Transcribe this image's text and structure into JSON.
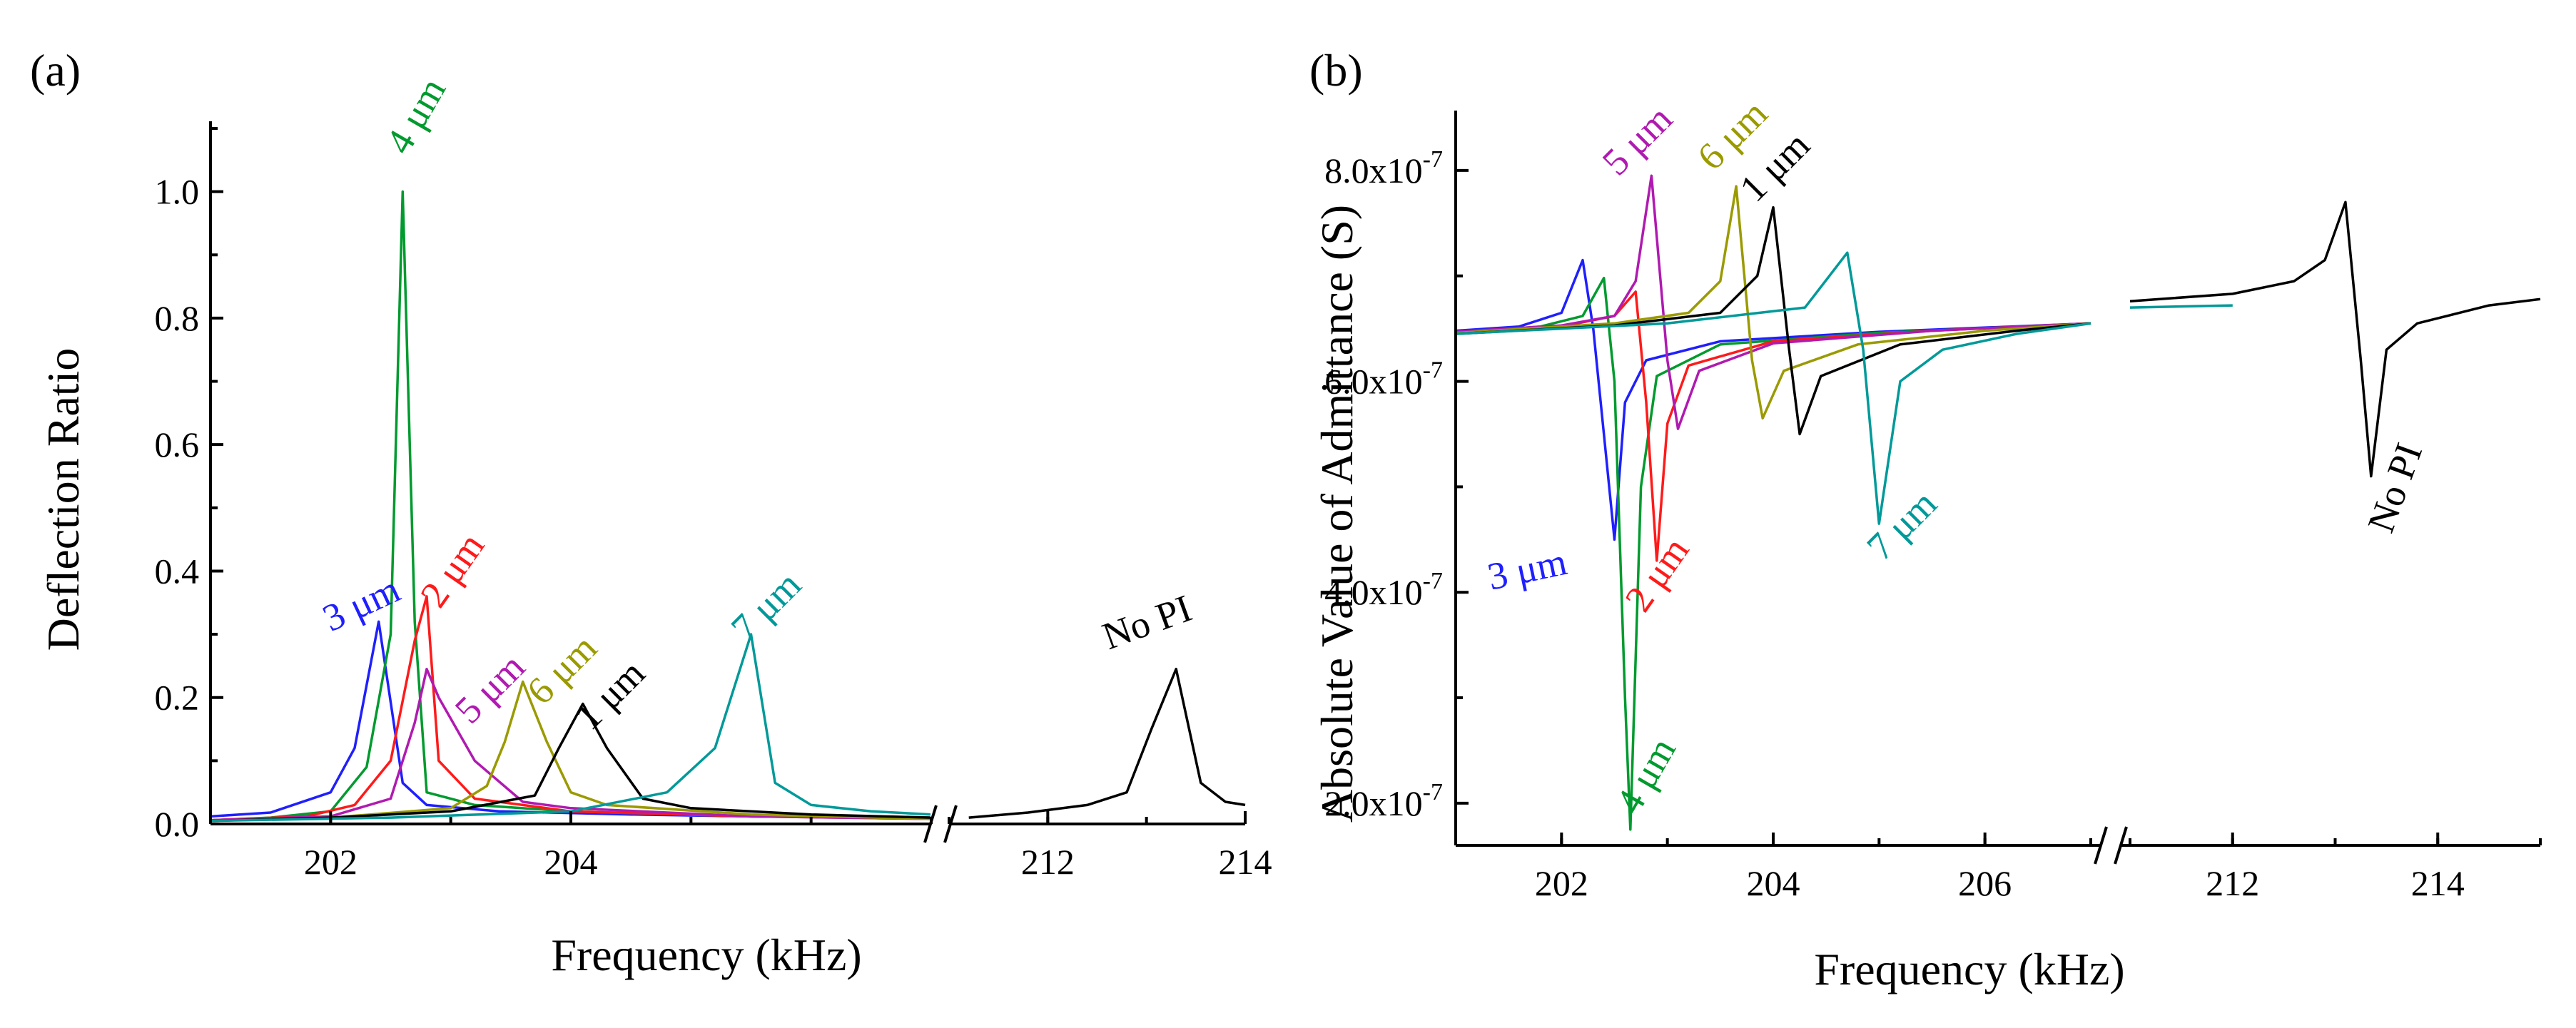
{
  "chart_data": [
    {
      "type": "line",
      "panel": "(a)",
      "xlabel": "Frequency (kHz)",
      "ylabel": "Deflection Ratio",
      "segments": [
        {
          "xlim": [
            201,
            207
          ]
        },
        {
          "xlim": [
            211,
            214
          ]
        }
      ],
      "ylim": [
        0,
        1.1
      ],
      "xticks": [
        {
          "label": "202",
          "value": 202,
          "seg": 0
        },
        {
          "label": "204",
          "value": 204,
          "seg": 0
        },
        {
          "label": "212",
          "value": 212,
          "seg": 1
        },
        {
          "label": "214",
          "value": 214,
          "seg": 1
        }
      ],
      "yticks": [
        "0.0",
        "0.2",
        "0.4",
        "0.6",
        "0.8",
        "1.0"
      ],
      "series": [
        {
          "name": "3 μm",
          "color": "#1f1fff",
          "label": "3 μm",
          "label_at": [
            202.3,
            0.33
          ],
          "label_rot": -25,
          "points": [
            [
              201,
              0.012
            ],
            [
              201.5,
              0.018
            ],
            [
              202,
              0.05
            ],
            [
              202.2,
              0.12
            ],
            [
              202.4,
              0.32
            ],
            [
              202.6,
              0.065
            ],
            [
              202.8,
              0.03
            ],
            [
              203.4,
              0.02
            ],
            [
              204.5,
              0.015
            ],
            [
              205.5,
              0.012
            ],
            [
              207,
              0.01
            ]
          ]
        },
        {
          "name": "4 μm",
          "color": "#009a2e",
          "label": "4 μm",
          "label_at": [
            202.8,
            1.11
          ],
          "label_rot": -60,
          "points": [
            [
              201,
              0.006
            ],
            [
              201.5,
              0.01
            ],
            [
              202,
              0.02
            ],
            [
              202.3,
              0.09
            ],
            [
              202.5,
              0.3
            ],
            [
              202.6,
              1.0
            ],
            [
              202.7,
              0.32
            ],
            [
              202.8,
              0.05
            ],
            [
              203.2,
              0.03
            ],
            [
              204,
              0.02
            ],
            [
              205.5,
              0.012
            ],
            [
              207,
              0.01
            ]
          ]
        },
        {
          "name": "2 μm",
          "color": "#ff1a1a",
          "label": "2 μm",
          "label_at": [
            203.1,
            0.39
          ],
          "label_rot": -55,
          "points": [
            [
              201,
              0.006
            ],
            [
              201.8,
              0.012
            ],
            [
              202.2,
              0.03
            ],
            [
              202.5,
              0.1
            ],
            [
              202.7,
              0.29
            ],
            [
              202.8,
              0.36
            ],
            [
              202.9,
              0.1
            ],
            [
              203.2,
              0.04
            ],
            [
              204,
              0.02
            ],
            [
              205.5,
              0.012
            ],
            [
              207,
              0.008
            ]
          ]
        },
        {
          "name": "5 μm",
          "color": "#b01ab0",
          "label": "5 μm",
          "label_at": [
            203.4,
            0.2
          ],
          "label_rot": -45,
          "points": [
            [
              201,
              0.006
            ],
            [
              202,
              0.012
            ],
            [
              202.5,
              0.04
            ],
            [
              202.7,
              0.16
            ],
            [
              202.8,
              0.245
            ],
            [
              202.9,
              0.2
            ],
            [
              203.2,
              0.1
            ],
            [
              203.6,
              0.035
            ],
            [
              204,
              0.025
            ],
            [
              205.5,
              0.012
            ],
            [
              207,
              0.008
            ]
          ]
        },
        {
          "name": "6 μm",
          "color": "#9a9a00",
          "label": "6 μm",
          "label_at": [
            204.0,
            0.23
          ],
          "label_rot": -45,
          "points": [
            [
              201,
              0.005
            ],
            [
              202,
              0.01
            ],
            [
              203,
              0.025
            ],
            [
              203.3,
              0.06
            ],
            [
              203.45,
              0.13
            ],
            [
              203.6,
              0.225
            ],
            [
              203.8,
              0.13
            ],
            [
              204,
              0.05
            ],
            [
              204.3,
              0.03
            ],
            [
              205.5,
              0.015
            ],
            [
              207,
              0.008
            ]
          ]
        },
        {
          "name": "1 μm",
          "color": "#000000",
          "label": "1 μm",
          "label_at": [
            204.4,
            0.19
          ],
          "label_rot": -45,
          "points": [
            [
              201,
              0.005
            ],
            [
              202,
              0.01
            ],
            [
              203,
              0.02
            ],
            [
              203.7,
              0.045
            ],
            [
              203.9,
              0.12
            ],
            [
              204.1,
              0.19
            ],
            [
              204.3,
              0.12
            ],
            [
              204.6,
              0.04
            ],
            [
              205,
              0.025
            ],
            [
              206,
              0.015
            ],
            [
              207,
              0.01
            ]
          ]
        },
        {
          "name": "7 μm",
          "color": "#009999",
          "label": "7 μm",
          "label_at": [
            205.7,
            0.33
          ],
          "label_rot": -45,
          "points": [
            [
              201,
              0.005
            ],
            [
              202.5,
              0.01
            ],
            [
              204,
              0.02
            ],
            [
              204.8,
              0.05
            ],
            [
              205.2,
              0.12
            ],
            [
              205.5,
              0.3
            ],
            [
              205.7,
              0.065
            ],
            [
              206,
              0.03
            ],
            [
              206.5,
              0.02
            ],
            [
              207,
              0.015
            ]
          ]
        },
        {
          "name": "No PI",
          "color": "#000000",
          "label": "No PI",
          "label_at": [
            213.05,
            0.3
          ],
          "label_rot": -20,
          "points": [
            [
              211.2,
              0.01
            ],
            [
              211.8,
              0.018
            ],
            [
              212.4,
              0.03
            ],
            [
              212.8,
              0.05
            ],
            [
              213.05,
              0.15
            ],
            [
              213.3,
              0.245
            ],
            [
              213.55,
              0.065
            ],
            [
              213.8,
              0.035
            ],
            [
              214,
              0.03
            ]
          ]
        }
      ]
    },
    {
      "type": "line",
      "panel": "(b)",
      "xlabel": "Frequency (kHz)",
      "ylabel": "Absolute Value of Admittance (S)",
      "segments": [
        {
          "xlim": [
            201,
            207
          ]
        },
        {
          "xlim": [
            211,
            215
          ]
        }
      ],
      "ylim": [
        1.6e-07,
        8.5e-07
      ],
      "xticks": [
        {
          "label": "202",
          "value": 202,
          "seg": 0
        },
        {
          "label": "204",
          "value": 204,
          "seg": 0
        },
        {
          "label": "206",
          "value": 206,
          "seg": 0
        },
        {
          "label": "212",
          "value": 212,
          "seg": 1
        },
        {
          "label": "214",
          "value": 214,
          "seg": 1
        }
      ],
      "yticks": [
        {
          "mant": "2.0x10",
          "exp": "-7",
          "value": 2e-07
        },
        {
          "mant": "4.0x10",
          "exp": "-7",
          "value": 4e-07
        },
        {
          "mant": "6.0x10",
          "exp": "-7",
          "value": 6e-07
        },
        {
          "mant": "8.0x10",
          "exp": "-7",
          "value": 8e-07
        }
      ],
      "series": [
        {
          "name": "3 μm",
          "color": "#1f1fff",
          "label": "3 μm",
          "label_at": [
            201.7,
            4.1e-07
          ],
          "label_rot": -12,
          "points": [
            [
              201,
              6.48e-07
            ],
            [
              201.6,
              6.52e-07
            ],
            [
              202,
              6.65e-07
            ],
            [
              202.2,
              7.15e-07
            ],
            [
              202.3,
              6.5e-07
            ],
            [
              202.4,
              5.5e-07
            ],
            [
              202.5,
              4.5e-07
            ],
            [
              202.6,
              5.8e-07
            ],
            [
              202.8,
              6.2e-07
            ],
            [
              203.5,
              6.38e-07
            ],
            [
              205,
              6.47e-07
            ],
            [
              207,
              6.55e-07
            ]
          ]
        },
        {
          "name": "4 μm",
          "color": "#009a2e",
          "label": "4 μm",
          "label_at": [
            202.9,
            2.2e-07
          ],
          "label_rot": -60,
          "points": [
            [
              201,
              6.46e-07
            ],
            [
              201.8,
              6.52e-07
            ],
            [
              202.2,
              6.62e-07
            ],
            [
              202.4,
              6.98e-07
            ],
            [
              202.5,
              6e-07
            ],
            [
              202.6,
              3e-07
            ],
            [
              202.65,
              1.75e-07
            ],
            [
              202.75,
              5e-07
            ],
            [
              202.9,
              6.05e-07
            ],
            [
              203.5,
              6.35e-07
            ],
            [
              205,
              6.46e-07
            ],
            [
              207,
              6.55e-07
            ]
          ]
        },
        {
          "name": "2 μm",
          "color": "#ff1a1a",
          "label": "2 μm",
          "label_at": [
            203.0,
            4.1e-07
          ],
          "label_rot": -55,
          "points": [
            [
              201,
              6.46e-07
            ],
            [
              202,
              6.52e-07
            ],
            [
              202.5,
              6.62e-07
            ],
            [
              202.7,
              6.85e-07
            ],
            [
              202.8,
              5.8e-07
            ],
            [
              202.9,
              4.3e-07
            ],
            [
              203.0,
              5.6e-07
            ],
            [
              203.2,
              6.15e-07
            ],
            [
              204,
              6.38e-07
            ],
            [
              205.5,
              6.48e-07
            ],
            [
              207,
              6.55e-07
            ]
          ]
        },
        {
          "name": "5 μm",
          "color": "#b01ab0",
          "label": "5 μm",
          "label_at": [
            202.8,
            8.2e-07
          ],
          "label_rot": -45,
          "points": [
            [
              201,
              6.47e-07
            ],
            [
              202,
              6.53e-07
            ],
            [
              202.5,
              6.62e-07
            ],
            [
              202.7,
              6.95e-07
            ],
            [
              202.85,
              7.95e-07
            ],
            [
              203.0,
              6.2e-07
            ],
            [
              203.1,
              5.55e-07
            ],
            [
              203.3,
              6.1e-07
            ],
            [
              204,
              6.36e-07
            ],
            [
              205.5,
              6.48e-07
            ],
            [
              207,
              6.55e-07
            ]
          ]
        },
        {
          "name": "6 μm",
          "color": "#9a9a00",
          "label": "6 μm",
          "label_at": [
            203.7,
            8.25e-07
          ],
          "label_rot": -45,
          "points": [
            [
              201,
              6.46e-07
            ],
            [
              202.5,
              6.55e-07
            ],
            [
              203.2,
              6.65e-07
            ],
            [
              203.5,
              6.95e-07
            ],
            [
              203.65,
              7.85e-07
            ],
            [
              203.8,
              6.2e-07
            ],
            [
              203.9,
              5.65e-07
            ],
            [
              204.1,
              6.1e-07
            ],
            [
              204.8,
              6.35e-07
            ],
            [
              206,
              6.48e-07
            ],
            [
              207,
              6.55e-07
            ]
          ]
        },
        {
          "name": "1 μm",
          "color": "#000000",
          "label": "1 μm",
          "label_at": [
            204.1,
            7.95e-07
          ],
          "label_rot": -45,
          "points": [
            [
              201,
              6.45e-07
            ],
            [
              202.5,
              6.53e-07
            ],
            [
              203.5,
              6.65e-07
            ],
            [
              203.85,
              7e-07
            ],
            [
              204.0,
              7.65e-07
            ],
            [
              204.15,
              6.3e-07
            ],
            [
              204.25,
              5.5e-07
            ],
            [
              204.45,
              6.05e-07
            ],
            [
              205.2,
              6.35e-07
            ],
            [
              206.3,
              6.48e-07
            ],
            [
              207,
              6.55e-07
            ]
          ]
        },
        {
          "name": "7 μm",
          "color": "#009999",
          "label": "7 μm",
          "label_at": [
            205.3,
            4.55e-07
          ],
          "label_rot": -45,
          "points": [
            [
              201,
              6.45e-07
            ],
            [
              203,
              6.55e-07
            ],
            [
              204.3,
              6.7e-07
            ],
            [
              204.7,
              7.22e-07
            ],
            [
              204.85,
              6.3e-07
            ],
            [
              205.0,
              4.65e-07
            ],
            [
              205.2,
              6e-07
            ],
            [
              205.6,
              6.3e-07
            ],
            [
              206.3,
              6.45e-07
            ],
            [
              207,
              6.55e-07
            ]
          ]
        },
        {
          "name": "No PI",
          "color": "#000000",
          "label": "No PI",
          "label_at": [
            213.7,
            4.95e-07
          ],
          "label_rot": -70,
          "points": [
            [
              211,
              6.76e-07
            ],
            [
              212,
              6.83e-07
            ],
            [
              212.6,
              6.95e-07
            ],
            [
              212.9,
              7.15e-07
            ],
            [
              213.1,
              7.7e-07
            ],
            [
              213.25,
              6.2e-07
            ],
            [
              213.35,
              5.1e-07
            ],
            [
              213.5,
              6.3e-07
            ],
            [
              213.8,
              6.55e-07
            ],
            [
              214.5,
              6.72e-07
            ],
            [
              215,
              6.78e-07
            ]
          ]
        },
        {
          "name": "teal-tail",
          "color": "#009999",
          "label": "",
          "points": [
            [
              211,
              6.7e-07
            ],
            [
              212,
              6.72e-07
            ]
          ]
        }
      ]
    }
  ]
}
